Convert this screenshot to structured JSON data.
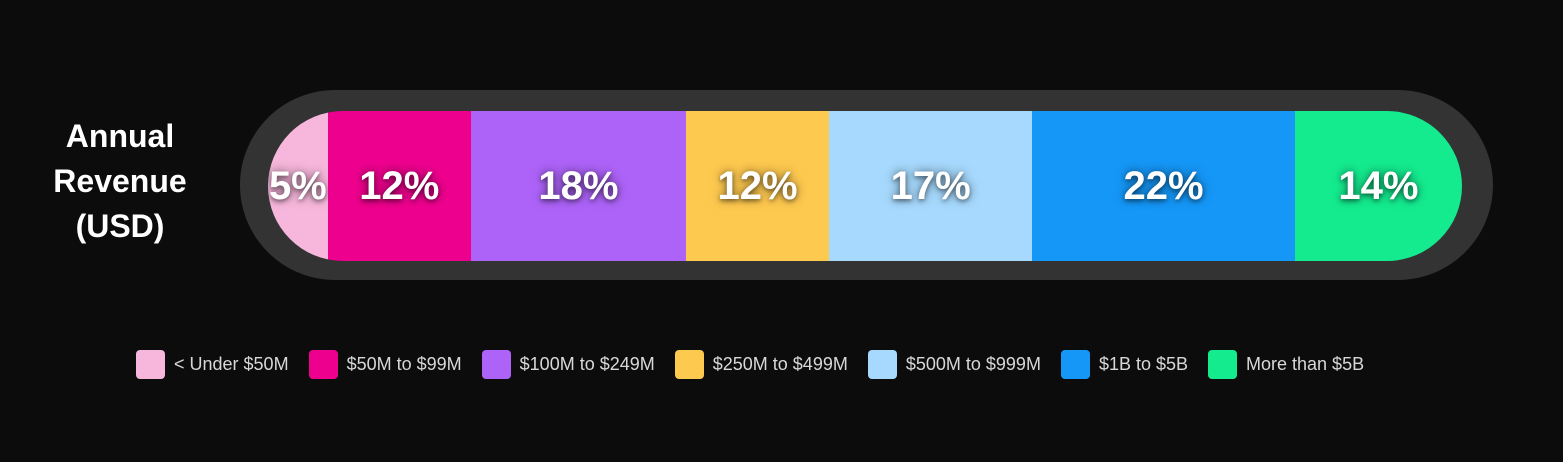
{
  "chart_data": {
    "type": "bar",
    "orientation": "horizontal-stacked",
    "ylabel": [
      "Annual",
      "Revenue",
      "(USD)"
    ],
    "categories": [
      "< Under $50M",
      "$50M to $99M",
      "$100M to $249M",
      "$250M to $499M",
      "$500M to $999M",
      "$1B to $5B",
      "More than $5B"
    ],
    "values": [
      5,
      12,
      18,
      12,
      17,
      22,
      14
    ],
    "value_labels": [
      "5%",
      "12%",
      "18%",
      "12%",
      "17%",
      "22%",
      "14%"
    ],
    "colors": [
      "#f7b7dc",
      "#ee008e",
      "#ad63f8",
      "#fec94f",
      "#a6d9fd",
      "#1597f7",
      "#14eb8f"
    ],
    "legend_position": "bottom"
  }
}
